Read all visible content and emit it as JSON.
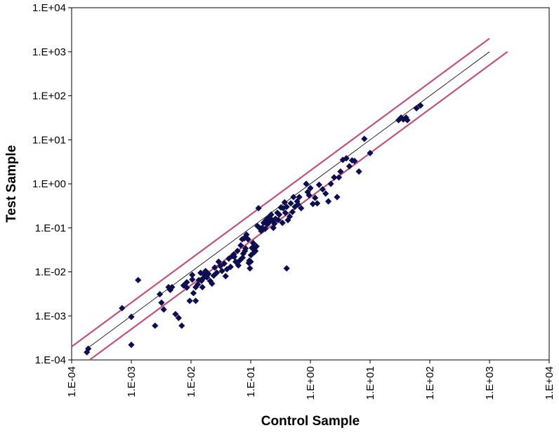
{
  "chart_data": {
    "type": "scatter",
    "title": "",
    "xlabel": "Control Sample",
    "ylabel": "Test Sample",
    "x_scale": "log",
    "y_scale": "log",
    "xlim": [
      0.0001,
      10000
    ],
    "ylim": [
      0.0001,
      10000
    ],
    "x_tick_labels": [
      "1.E-04",
      "1.E-03",
      "1.E-02",
      "1.E-01",
      "1.E+00",
      "1.E+01",
      "1.E+02",
      "1.E+03",
      "1.E+04"
    ],
    "y_tick_labels": [
      "1.E-04",
      "1.E-03",
      "1.E-02",
      "1.E-01",
      "1.E+00",
      "1.E+01",
      "1.E+02",
      "1.E+03",
      "1.E+04"
    ],
    "grid": false,
    "legend": "none",
    "colors": {
      "points": "#0d0d4f",
      "identity_line": "#222222",
      "bound_lines": "#c2527a"
    },
    "reference_lines": [
      {
        "kind": "identity",
        "x": [
          0.0002,
          1000
        ],
        "y": [
          0.0002,
          1000
        ]
      },
      {
        "kind": "upper-bound",
        "x": [
          0.0001,
          1000
        ],
        "y": [
          0.0002,
          2000
        ]
      },
      {
        "kind": "lower-bound",
        "x": [
          0.0002,
          2000
        ],
        "y": [
          0.0001,
          1000
        ]
      }
    ],
    "points": [
      [
        0.00018,
        0.00015
      ],
      [
        0.00019,
        0.00018
      ],
      [
        0.0007,
        0.0015
      ],
      [
        0.001,
        0.00095
      ],
      [
        0.001,
        0.00022
      ],
      [
        0.0013,
        0.0065
      ],
      [
        0.0025,
        0.0006
      ],
      [
        0.003,
        0.0031
      ],
      [
        0.0035,
        0.0014
      ],
      [
        0.0032,
        0.002
      ],
      [
        0.0042,
        0.0045
      ],
      [
        0.0045,
        0.0039
      ],
      [
        0.0048,
        0.0045
      ],
      [
        0.0055,
        0.0011
      ],
      [
        0.0062,
        0.0009
      ],
      [
        0.007,
        0.0006
      ],
      [
        0.0075,
        0.0049
      ],
      [
        0.0085,
        0.0044
      ],
      [
        0.0085,
        0.0058
      ],
      [
        0.0095,
        0.0022
      ],
      [
        0.0105,
        0.0067
      ],
      [
        0.0105,
        0.0085
      ],
      [
        0.011,
        0.0033
      ],
      [
        0.012,
        0.0022
      ],
      [
        0.012,
        0.0045
      ],
      [
        0.013,
        0.0052
      ],
      [
        0.0135,
        0.0065
      ],
      [
        0.0145,
        0.0095
      ],
      [
        0.015,
        0.0063
      ],
      [
        0.0155,
        0.0045
      ],
      [
        0.016,
        0.0072
      ],
      [
        0.0165,
        0.0088
      ],
      [
        0.0175,
        0.0105
      ],
      [
        0.0185,
        0.0075
      ],
      [
        0.0195,
        0.009
      ],
      [
        0.021,
        0.0062
      ],
      [
        0.0225,
        0.0054
      ],
      [
        0.024,
        0.0082
      ],
      [
        0.025,
        0.0125
      ],
      [
        0.027,
        0.0096
      ],
      [
        0.029,
        0.017
      ],
      [
        0.031,
        0.0135
      ],
      [
        0.033,
        0.0105
      ],
      [
        0.036,
        0.0155
      ],
      [
        0.038,
        0.008
      ],
      [
        0.04,
        0.0115
      ],
      [
        0.043,
        0.02
      ],
      [
        0.046,
        0.013
      ],
      [
        0.049,
        0.023
      ],
      [
        0.052,
        0.025
      ],
      [
        0.053,
        0.022
      ],
      [
        0.056,
        0.017
      ],
      [
        0.06,
        0.03
      ],
      [
        0.062,
        0.014
      ],
      [
        0.065,
        0.018
      ],
      [
        0.068,
        0.04
      ],
      [
        0.072,
        0.055
      ],
      [
        0.073,
        0.021
      ],
      [
        0.075,
        0.026
      ],
      [
        0.078,
        0.058
      ],
      [
        0.08,
        0.03
      ],
      [
        0.082,
        0.034
      ],
      [
        0.085,
        0.07
      ],
      [
        0.09,
        0.055
      ],
      [
        0.093,
        0.016
      ],
      [
        0.095,
        0.018
      ],
      [
        0.097,
        0.012
      ],
      [
        0.1,
        0.017
      ],
      [
        0.101,
        0.024
      ],
      [
        0.105,
        0.035
      ],
      [
        0.11,
        0.045
      ],
      [
        0.112,
        0.035
      ],
      [
        0.115,
        0.028
      ],
      [
        0.12,
        0.03
      ],
      [
        0.125,
        0.038
      ],
      [
        0.13,
        0.11
      ],
      [
        0.135,
        0.28
      ],
      [
        0.14,
        0.1
      ],
      [
        0.15,
        0.085
      ],
      [
        0.155,
        0.1
      ],
      [
        0.165,
        0.13
      ],
      [
        0.175,
        0.095
      ],
      [
        0.18,
        0.15
      ],
      [
        0.19,
        0.12
      ],
      [
        0.2,
        0.17
      ],
      [
        0.21,
        0.14
      ],
      [
        0.22,
        0.2
      ],
      [
        0.23,
        0.15
      ],
      [
        0.24,
        0.1
      ],
      [
        0.25,
        0.125
      ],
      [
        0.26,
        0.16
      ],
      [
        0.28,
        0.22
      ],
      [
        0.29,
        0.15
      ],
      [
        0.3,
        0.2
      ],
      [
        0.32,
        0.29
      ],
      [
        0.34,
        0.13
      ],
      [
        0.35,
        0.28
      ],
      [
        0.37,
        0.38
      ],
      [
        0.38,
        0.22
      ],
      [
        0.4,
        0.3
      ],
      [
        0.4,
        0.012
      ],
      [
        0.42,
        0.15
      ],
      [
        0.45,
        0.18
      ],
      [
        0.47,
        0.36
      ],
      [
        0.5,
        0.23
      ],
      [
        0.52,
        0.5
      ],
      [
        0.55,
        0.3
      ],
      [
        0.6,
        0.4
      ],
      [
        0.62,
        0.34
      ],
      [
        0.65,
        0.5
      ],
      [
        0.7,
        0.28
      ],
      [
        0.85,
        1.0
      ],
      [
        0.9,
        0.65
      ],
      [
        0.95,
        0.55
      ],
      [
        1.0,
        0.8
      ],
      [
        1.1,
        0.35
      ],
      [
        1.2,
        0.48
      ],
      [
        1.3,
        0.36
      ],
      [
        1.4,
        0.95
      ],
      [
        1.6,
        0.75
      ],
      [
        1.8,
        0.6
      ],
      [
        2.0,
        0.4
      ],
      [
        2.2,
        1.0
      ],
      [
        2.5,
        1.4
      ],
      [
        2.8,
        0.5
      ],
      [
        3.0,
        1.4
      ],
      [
        3.2,
        1.9
      ],
      [
        3.5,
        3.5
      ],
      [
        4.0,
        3.8
      ],
      [
        4.5,
        2.5
      ],
      [
        5.0,
        3.4
      ],
      [
        5.5,
        3.3
      ],
      [
        6.5,
        1.9
      ],
      [
        8.0,
        10.5
      ],
      [
        10.0,
        5.0
      ],
      [
        30.0,
        28.0
      ],
      [
        33.0,
        32.0
      ],
      [
        36.0,
        29.0
      ],
      [
        40.0,
        32.0
      ],
      [
        42.0,
        28.0
      ],
      [
        60.0,
        52.0
      ],
      [
        70.0,
        60.0
      ]
    ]
  }
}
